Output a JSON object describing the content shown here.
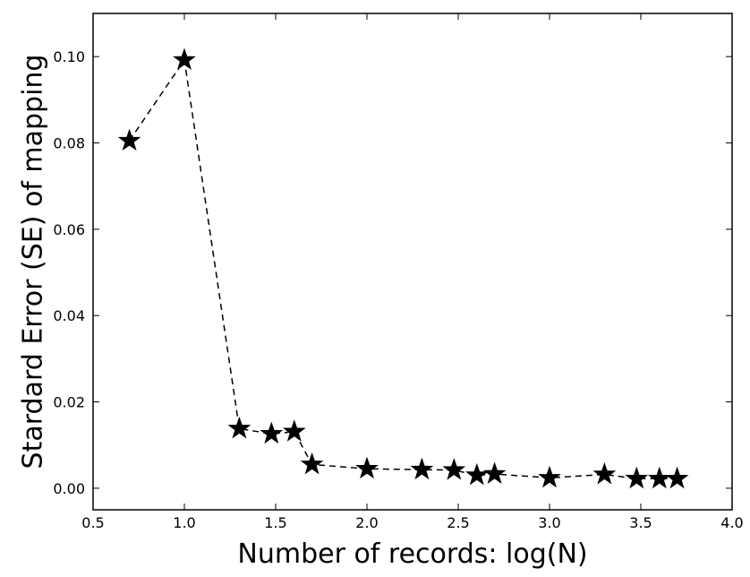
{
  "chart_data": {
    "type": "line",
    "title": "",
    "xlabel": "Number of records: log(N)",
    "ylabel": "Stardard Error (SE) of mapping",
    "xlim": [
      0.5,
      4.0
    ],
    "ylim": [
      -0.005,
      0.11
    ],
    "xticks": [
      0.5,
      1.0,
      1.5,
      2.0,
      2.5,
      3.0,
      3.5,
      4.0
    ],
    "xtick_labels": [
      "0.5",
      "1.0",
      "1.5",
      "2.0",
      "2.5",
      "3.0",
      "3.5",
      "4.0"
    ],
    "yticks": [
      0.0,
      0.02,
      0.04,
      0.06,
      0.08,
      0.1
    ],
    "ytick_labels": [
      "0.00",
      "0.02",
      "0.04",
      "0.06",
      "0.08",
      "0.10"
    ],
    "grid": false,
    "legend": "none",
    "series": [
      {
        "line_style": "dashed",
        "marker": "star",
        "color": "#000000",
        "x": [
          0.699,
          1.0,
          1.301,
          1.477,
          1.602,
          1.699,
          2.0,
          2.301,
          2.477,
          2.602,
          2.699,
          3.0,
          3.301,
          3.477,
          3.602,
          3.699
        ],
        "y": [
          0.0805,
          0.0992,
          0.0138,
          0.0126,
          0.0131,
          0.0055,
          0.0045,
          0.0043,
          0.0042,
          0.003,
          0.0033,
          0.0024,
          0.0032,
          0.0022,
          0.0022,
          0.0022
        ]
      }
    ]
  }
}
